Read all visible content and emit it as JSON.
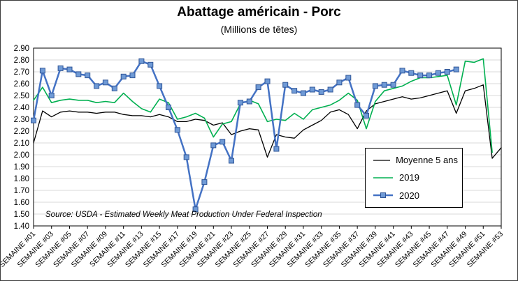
{
  "chart_data": {
    "type": "line",
    "title": "Abattage américain - Porc",
    "subtitle": "(Millions de têtes)",
    "xlabel": "",
    "ylabel": "",
    "ylim": [
      1.4,
      2.9
    ],
    "ytick_step": 0.1,
    "x_label_every": 2,
    "grid": true,
    "gridline_color": "#d9d9d9",
    "axis_color": "#000000",
    "legend_position": "inside-right",
    "source_note": "Source: USDA - Estimated Weekly Meat Production Under Federal Inspection",
    "categories": [
      "SEMAINE #01",
      "SEMAINE #02",
      "SEMAINE #03",
      "SEMAINE #04",
      "SEMAINE #05",
      "SEMAINE #06",
      "SEMAINE #07",
      "SEMAINE #08",
      "SEMAINE #09",
      "SEMAINE #10",
      "SEMAINE #11",
      "SEMAINE #12",
      "SEMAINE #13",
      "SEMAINE #14",
      "SEMAINE #15",
      "SEMAINE #16",
      "SEMAINE #17",
      "SEMAINE #18",
      "SEMAINE #19",
      "SEMAINE #20",
      "SEMAINE #21",
      "SEMAINE #22",
      "SEMAINE #23",
      "SEMAINE #24",
      "SEMAINE #25",
      "SEMAINE #26",
      "SEMAINE #27",
      "SEMAINE #28",
      "SEMAINE #29",
      "SEMAINE #30",
      "SEMAINE #31",
      "SEMAINE #32",
      "SEMAINE #33",
      "SEMAINE #34",
      "SEMAINE #35",
      "SEMAINE #36",
      "SEMAINE #37",
      "SEMAINE #38",
      "SEMAINE #39",
      "SEMAINE #40",
      "SEMAINE #41",
      "SEMAINE #42",
      "SEMAINE #43",
      "SEMAINE #44",
      "SEMAINE #45",
      "SEMAINE #46",
      "SEMAINE #47",
      "SEMAINE #48",
      "SEMAINE #49",
      "SEMAINE #50",
      "SEMAINE #51",
      "SEMAINE #52",
      "SEMAINE #53"
    ],
    "series": [
      {
        "name": "Moyenne 5 ans",
        "color": "#000000",
        "width": 1.3,
        "marker": null,
        "values": [
          2.1,
          2.37,
          2.32,
          2.36,
          2.37,
          2.36,
          2.36,
          2.35,
          2.36,
          2.36,
          2.34,
          2.33,
          2.33,
          2.32,
          2.34,
          2.32,
          2.28,
          2.28,
          2.3,
          2.29,
          2.25,
          2.27,
          2.17,
          2.2,
          2.22,
          2.21,
          1.98,
          2.17,
          2.15,
          2.14,
          2.21,
          2.25,
          2.29,
          2.36,
          2.38,
          2.34,
          2.22,
          2.37,
          2.43,
          2.45,
          2.47,
          2.49,
          2.47,
          2.48,
          2.5,
          2.52,
          2.54,
          2.35,
          2.54,
          2.56,
          2.59,
          1.97,
          2.06
        ]
      },
      {
        "name": "2019",
        "color": "#00b050",
        "width": 1.6,
        "marker": null,
        "values": [
          2.46,
          2.57,
          2.44,
          2.46,
          2.47,
          2.46,
          2.46,
          2.44,
          2.45,
          2.44,
          2.52,
          2.45,
          2.39,
          2.36,
          2.47,
          2.44,
          2.3,
          2.32,
          2.35,
          2.31,
          2.15,
          2.26,
          2.28,
          2.43,
          2.46,
          2.43,
          2.28,
          2.3,
          2.29,
          2.35,
          2.3,
          2.38,
          2.4,
          2.42,
          2.46,
          2.52,
          2.46,
          2.22,
          2.45,
          2.54,
          2.56,
          2.58,
          2.62,
          2.65,
          2.65,
          2.66,
          2.67,
          2.42,
          2.79,
          2.78,
          2.81,
          2.02,
          null
        ]
      },
      {
        "name": "2020",
        "color": "#4472c4",
        "width": 2.5,
        "marker": {
          "shape": "square",
          "fill": "#6f9ad6",
          "stroke": "#2f5597",
          "size": 7
        },
        "values": [
          2.29,
          2.71,
          2.5,
          2.73,
          2.72,
          2.68,
          2.67,
          2.58,
          2.61,
          2.56,
          2.66,
          2.67,
          2.79,
          2.76,
          2.58,
          2.4,
          2.21,
          1.98,
          1.54,
          1.77,
          2.08,
          2.11,
          1.95,
          2.44,
          2.45,
          2.57,
          2.62,
          2.05,
          2.59,
          2.54,
          2.52,
          2.55,
          2.53,
          2.55,
          2.61,
          2.65,
          2.42,
          2.33,
          2.58,
          2.59,
          2.59,
          2.71,
          2.69,
          2.67,
          2.67,
          2.69,
          2.7,
          2.72,
          null,
          null,
          null,
          null,
          null
        ]
      }
    ]
  }
}
